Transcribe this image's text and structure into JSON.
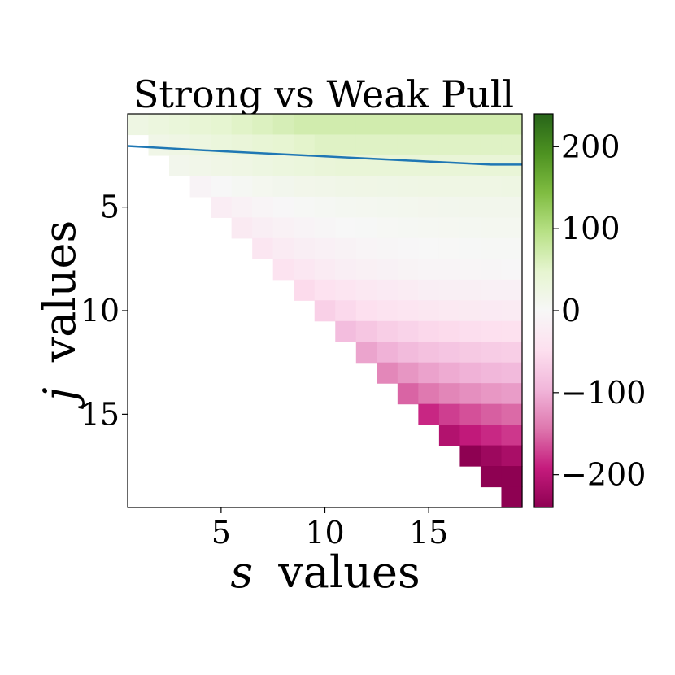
{
  "chart_data": {
    "type": "heatmap",
    "title": "Strong vs Weak Pull",
    "xlabel_var": "s",
    "ylabel_var": "j",
    "label_word": "values",
    "x_range": [
      1,
      19
    ],
    "y_range": [
      1,
      19
    ],
    "x_ticks": [
      5,
      10,
      15
    ],
    "y_ticks": [
      5,
      10,
      15
    ],
    "colorbar": {
      "colormap": "PiYG",
      "vmin": -240,
      "vmax": 240,
      "ticks": [
        200,
        100,
        0,
        -100,
        -200
      ],
      "tick_labels": [
        "200",
        "100",
        "0",
        "−100",
        "−200"
      ]
    },
    "mask": "cells with j > s are empty",
    "value_description": "Value at (s, j); positive (green) for small j, negative (magenta) for large j",
    "row_values_at_s19": [
      70,
      55,
      40,
      25,
      15,
      10,
      5,
      0,
      -10,
      -20,
      -40,
      -60,
      -80,
      -100,
      -130,
      -150,
      -180,
      -210,
      -240
    ],
    "line": {
      "color": "#1f77b4",
      "description": "blue curve",
      "points": [
        [
          1,
          2.05
        ],
        [
          5,
          2.3
        ],
        [
          10,
          2.55
        ],
        [
          15,
          2.8
        ],
        [
          18,
          2.95
        ],
        [
          19,
          2.95
        ]
      ]
    }
  }
}
